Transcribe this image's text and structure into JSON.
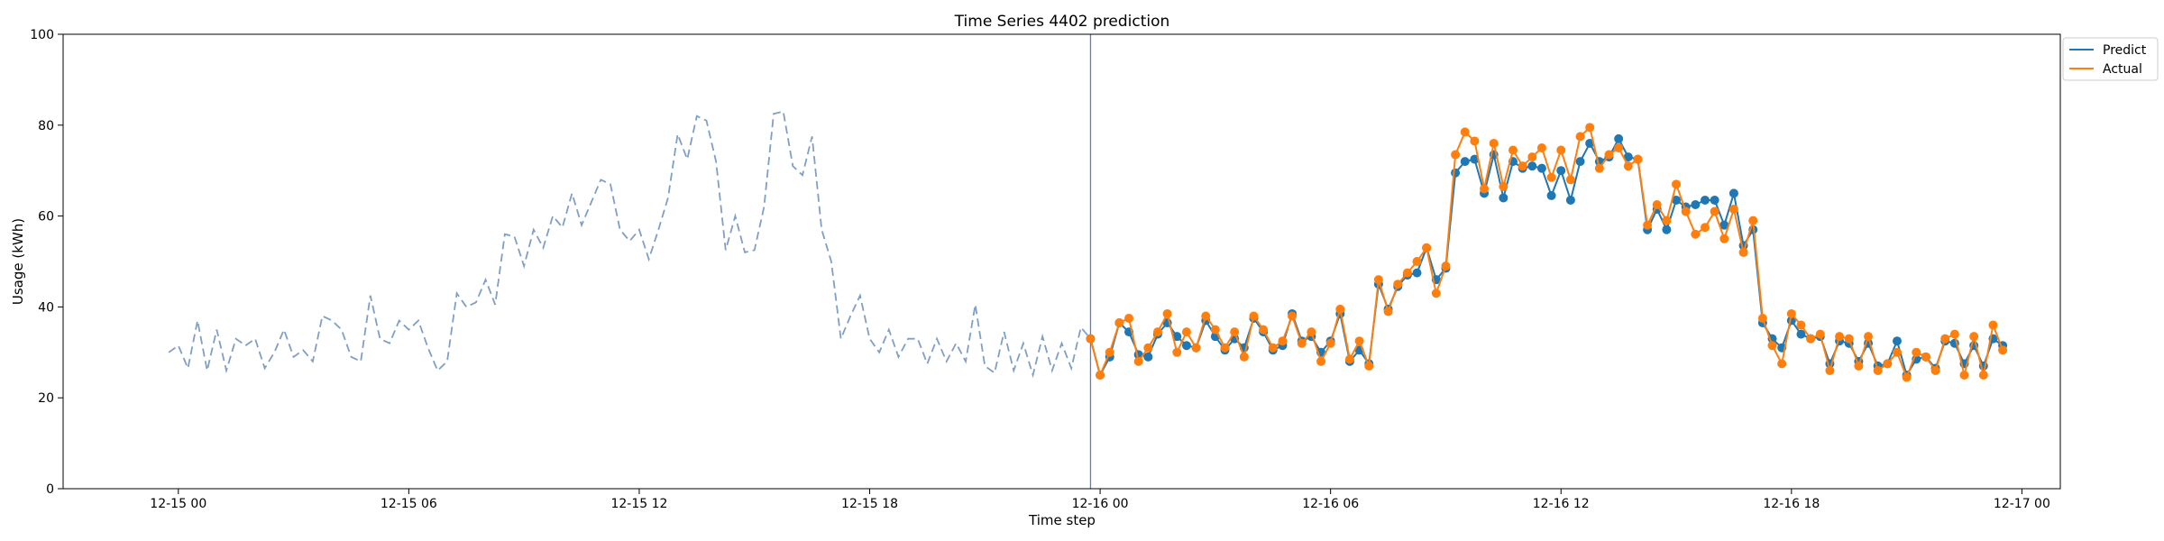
{
  "chart_data": {
    "type": "line",
    "title": "Time Series 4402 prediction",
    "xlabel": "Time step",
    "ylabel": "Usage (kWh)",
    "xlim": [
      "2023-12-14 21:00",
      "2023-12-17 01:00"
    ],
    "ylim": [
      0,
      100
    ],
    "yticks": [
      0,
      20,
      40,
      60,
      80,
      100
    ],
    "xticks": [
      {
        "t": "2023-12-15 00:00",
        "label": "12-15 00"
      },
      {
        "t": "2023-12-15 06:00",
        "label": "12-15 06"
      },
      {
        "t": "2023-12-15 12:00",
        "label": "12-15 12"
      },
      {
        "t": "2023-12-15 18:00",
        "label": "12-15 18"
      },
      {
        "t": "2023-12-16 00:00",
        "label": "12-16 00"
      },
      {
        "t": "2023-12-16 06:00",
        "label": "12-16 06"
      },
      {
        "t": "2023-12-16 12:00",
        "label": "12-16 12"
      },
      {
        "t": "2023-12-16 18:00",
        "label": "12-16 18"
      },
      {
        "t": "2023-12-17 00:00",
        "label": "12-17 00"
      }
    ],
    "grid": false,
    "legend_position": "outside-top-right",
    "forecast_start": "2023-12-15 23:45",
    "forecast_start_color": "#5b7fc4",
    "history": {
      "start": "2023-12-14 23:45",
      "interval_minutes": 15,
      "color": "#7f9fc4",
      "style": "dashed",
      "values": [
        30,
        31.5,
        26.5,
        37,
        26,
        35,
        26,
        33,
        31.5,
        33,
        26.5,
        30,
        35,
        29,
        30.5,
        28,
        38,
        37,
        35,
        29,
        28,
        42.5,
        33,
        32,
        37,
        35,
        37,
        31,
        26,
        28,
        43,
        40,
        41,
        46,
        40.5,
        56,
        55.5,
        49,
        57,
        53,
        60,
        57.5,
        65,
        58,
        63,
        68,
        67,
        57,
        54.5,
        57,
        50.5,
        57,
        64,
        78,
        72.5,
        82,
        81,
        72,
        52.5,
        60,
        52,
        52.5,
        62,
        82.5,
        83,
        71,
        69,
        77.5,
        57,
        50,
        33,
        38,
        42.5,
        33,
        30,
        35,
        29,
        33,
        33,
        27.5,
        33,
        28,
        32,
        28,
        40.5,
        27,
        25.5,
        34.5,
        26,
        32,
        25,
        33.5,
        26,
        32,
        26.5,
        35.5,
        33
      ]
    },
    "forecast": {
      "start": "2023-12-15 23:45",
      "interval_minutes": 15,
      "series": [
        {
          "name": "Predict",
          "color": "#1f77b4",
          "values": [
            33,
            25,
            29,
            36.5,
            34.5,
            29.5,
            29,
            34,
            36.5,
            33.5,
            31.5,
            31,
            37,
            33.5,
            30.5,
            33,
            31,
            37.5,
            34.5,
            30.5,
            31.5,
            38.5,
            32.5,
            33.5,
            30,
            32.5,
            38.5,
            28,
            30.5,
            27.5,
            45,
            39.5,
            44.5,
            47,
            47.5,
            53,
            46,
            48.5,
            69.5,
            72,
            72.5,
            65,
            73.5,
            64,
            72,
            70.5,
            71,
            70.5,
            64.5,
            70,
            63.5,
            72,
            76,
            72,
            73,
            77,
            73,
            72.5,
            57,
            61.5,
            57,
            63.5,
            62,
            62.5,
            63.5,
            63.5,
            58,
            65,
            53.5,
            57,
            36.5,
            33,
            31,
            37,
            34,
            33,
            33.5,
            27.5,
            32.5,
            32,
            28,
            32,
            27,
            27.5,
            32.5,
            25,
            28.5,
            29,
            26.5,
            32.5,
            32,
            27.5,
            31.5,
            27,
            33,
            31.5
          ]
        },
        {
          "name": "Actual",
          "color": "#ff7f0e",
          "values": [
            33,
            25,
            30,
            36.5,
            37.5,
            28,
            31,
            34.5,
            38.5,
            30,
            34.5,
            31,
            38,
            35,
            31,
            34.5,
            29,
            38,
            35,
            31,
            32.5,
            38,
            32,
            34.5,
            28,
            32,
            39.5,
            28.5,
            32.5,
            27,
            46,
            39,
            45,
            47.5,
            50,
            53,
            43,
            49,
            73.5,
            78.5,
            76.5,
            66,
            76,
            66.5,
            74.5,
            71,
            73,
            75,
            68.5,
            74.5,
            68,
            77.5,
            79.5,
            70.5,
            73.5,
            75,
            71,
            72.5,
            58,
            62.5,
            59,
            67,
            61,
            56,
            57.5,
            61,
            55,
            61.5,
            52,
            59,
            37.5,
            31.5,
            27.5,
            38.5,
            36,
            33,
            34,
            26,
            33.5,
            33,
            27,
            33.5,
            26,
            27.5,
            30,
            24.5,
            30,
            29,
            26,
            33,
            34,
            25,
            33.5,
            25,
            36,
            30.5
          ]
        }
      ]
    }
  }
}
